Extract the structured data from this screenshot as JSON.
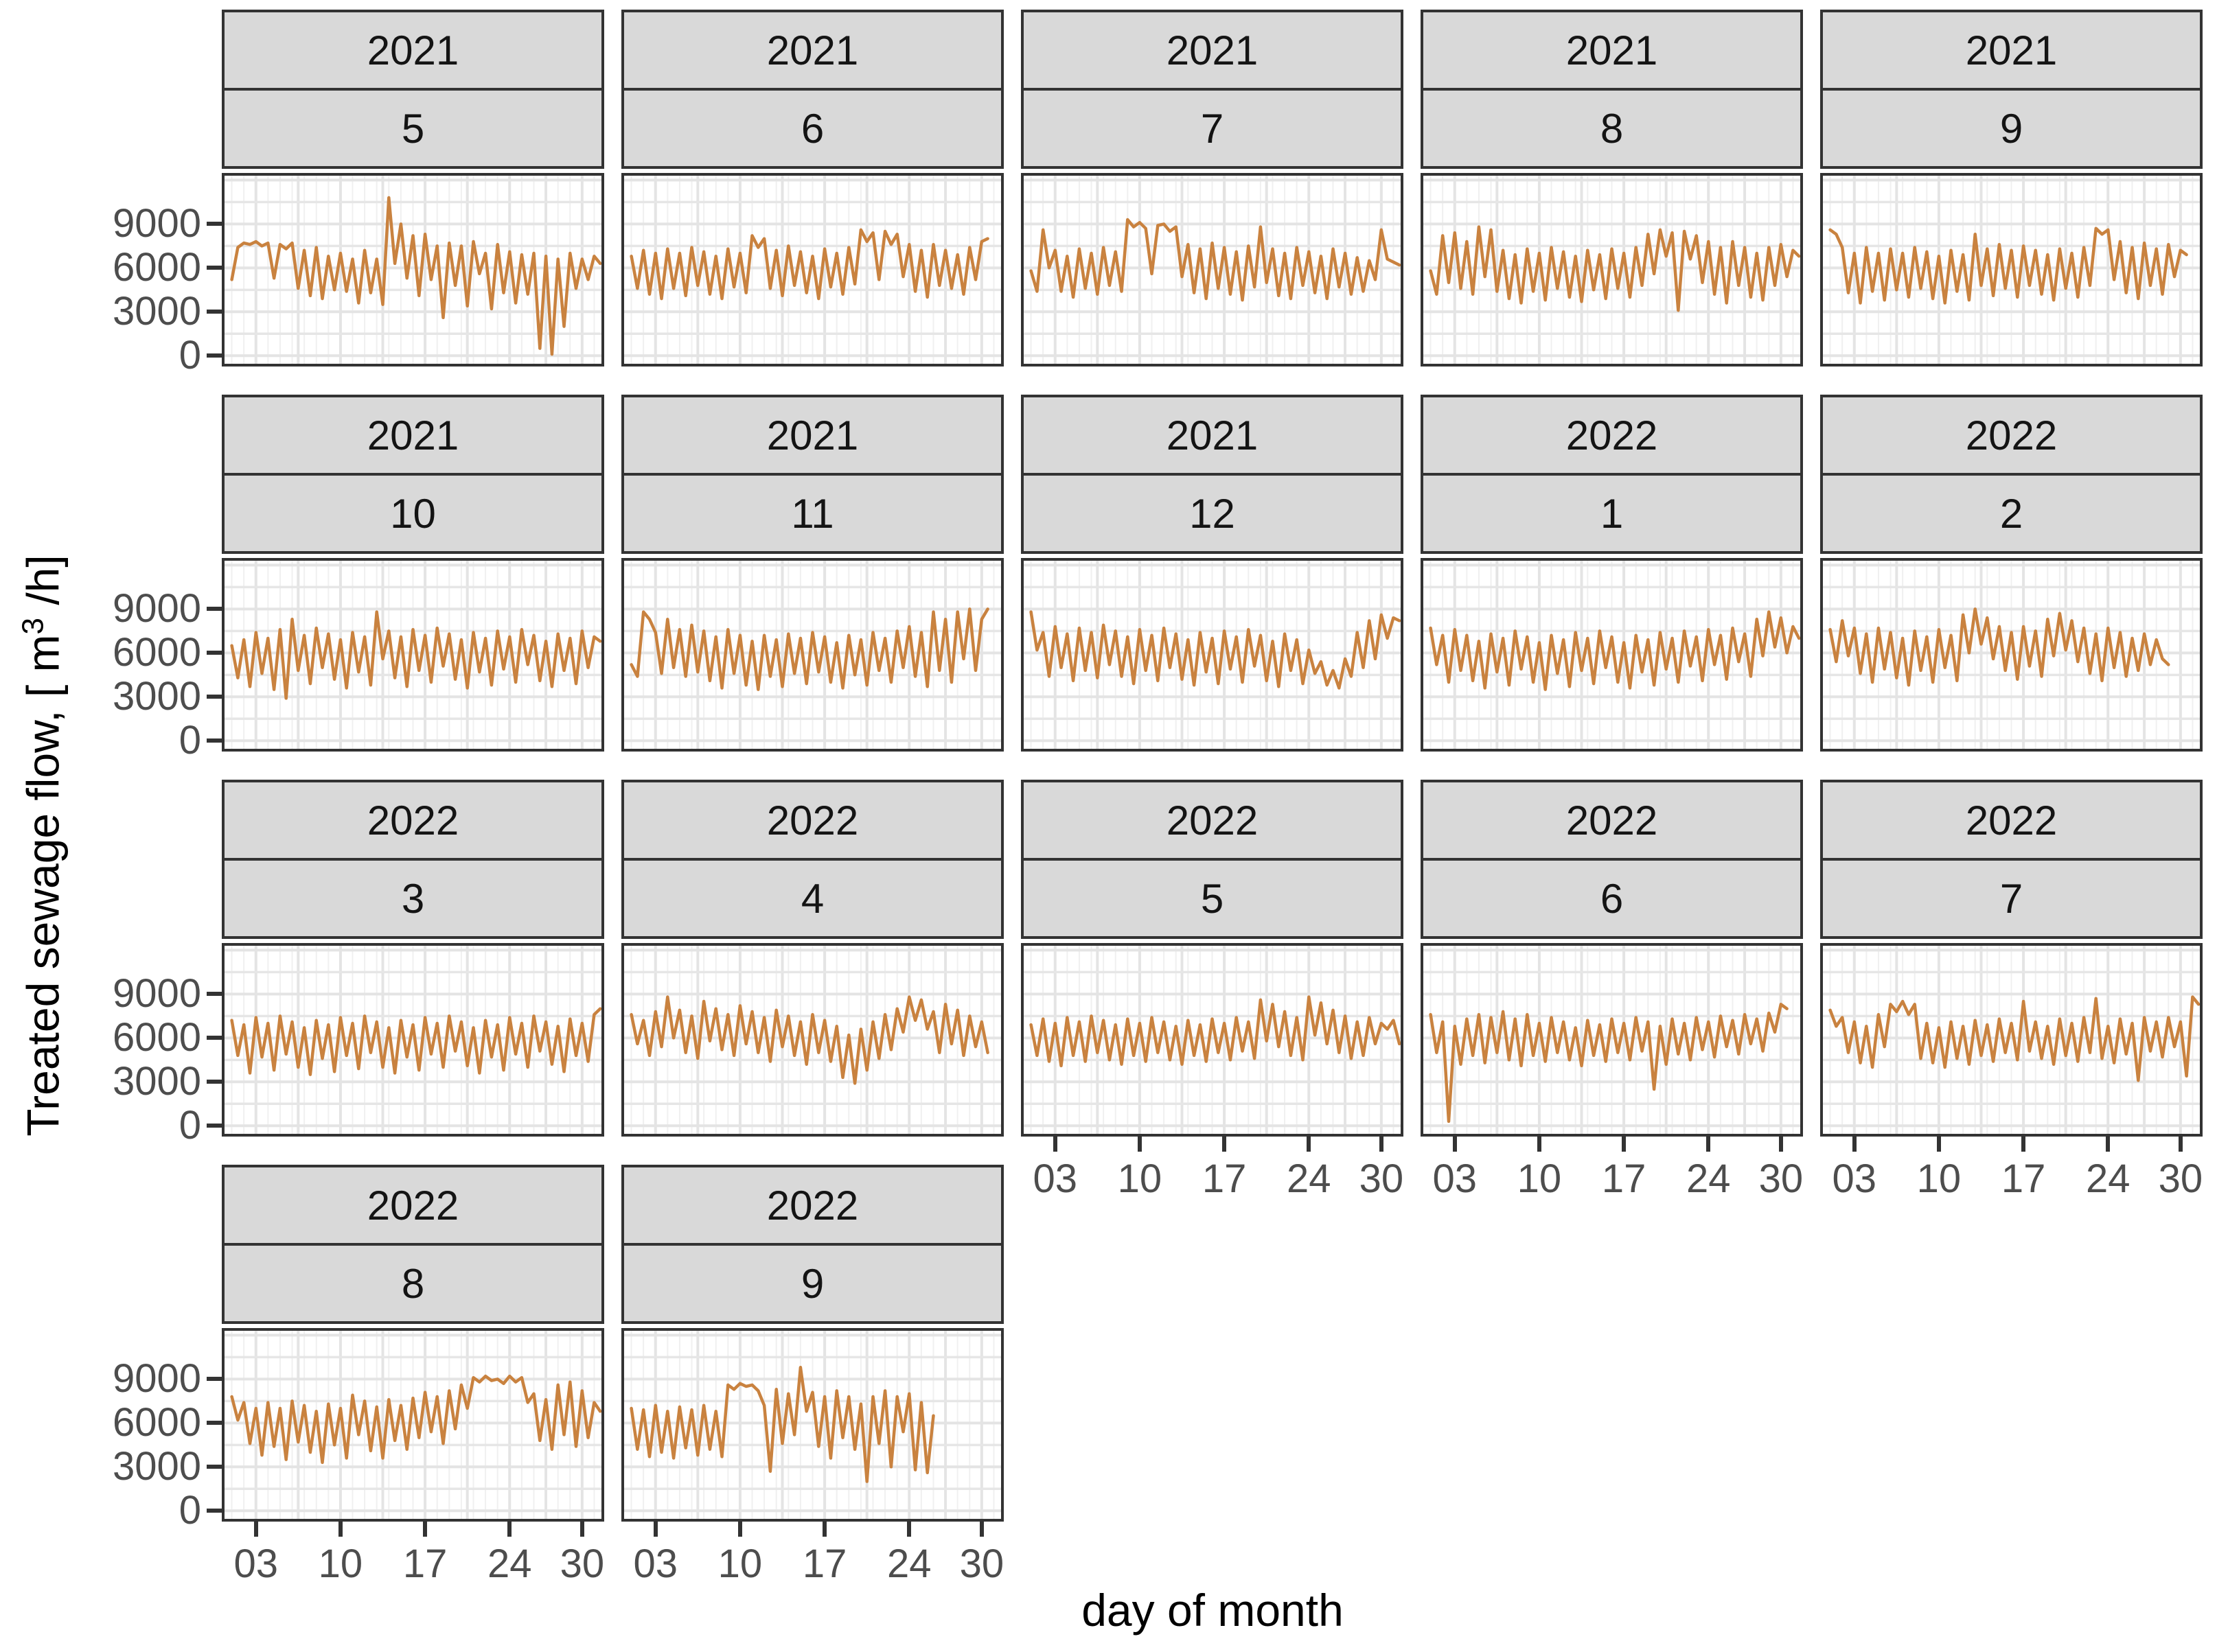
{
  "figure": {
    "x_axis_title": "day of month",
    "y_axis_title": {
      "prefix": "Treated sewage flow, [ m",
      "sup": "3",
      "suffix": " /h]"
    }
  },
  "chart_data": {
    "type": "line",
    "title": "",
    "xlabel": "day of month",
    "ylabel": "Treated sewage flow, [ m^3 /h]",
    "legend": "none",
    "grid": "on",
    "line_color": "#C9823F",
    "strip_bg": "#D9D9D9",
    "border_color": "#333333",
    "grid_major_color": "#E4E4E4",
    "grid_minor_color": "#F0F0F0",
    "grid_h_color": "#E6E6E6",
    "tick_label_color": "#4D4D4D",
    "x_domain": [
      0.4,
      31.6
    ],
    "y_domain": [
      -550,
      12300
    ],
    "x_ticks": {
      "values": [
        3,
        10,
        17,
        24,
        30
      ],
      "labels": [
        "03",
        "10",
        "17",
        "24",
        "30"
      ]
    },
    "y_ticks": {
      "values": [
        0,
        3000,
        6000,
        9000
      ],
      "labels": [
        "0",
        "3000",
        "6000",
        "9000"
      ]
    },
    "x_grid_major_days": [
      3,
      6.5,
      10,
      13.5,
      17,
      20.5,
      24,
      27,
      30
    ],
    "y_grid_step": 1500,
    "x_start_day": 1,
    "sample_step_days": 0.5,
    "facets": [
      {
        "year": "2021",
        "month": "5",
        "values": [
          5200,
          7400,
          7700,
          7600,
          7800,
          7500,
          7700,
          5300,
          7600,
          7300,
          7700,
          4600,
          7200,
          4100,
          7400,
          3900,
          6800,
          4500,
          7000,
          4400,
          6600,
          3600,
          7200,
          4300,
          6600,
          3500,
          10800,
          6300,
          9000,
          5300,
          8200,
          4100,
          8300,
          5200,
          7500,
          2600,
          7700,
          4800,
          7500,
          3400,
          7800,
          5600,
          7000,
          3200,
          7600,
          4300,
          7100,
          3600,
          6900,
          4200,
          7000,
          500,
          6800,
          100,
          6600,
          2000,
          7000,
          4600,
          6600,
          5200,
          6800,
          6300
        ]
      },
      {
        "year": "2021",
        "month": "6",
        "values": [
          6800,
          4600,
          7200,
          4200,
          7000,
          3900,
          7300,
          4600,
          7000,
          4100,
          7400,
          4800,
          7100,
          4200,
          6800,
          3900,
          7300,
          4700,
          7000,
          4300,
          8200,
          7400,
          8000,
          4600,
          7200,
          4100,
          7500,
          4800,
          7100,
          4300,
          6800,
          3900,
          7300,
          4700,
          7000,
          4200,
          7400,
          4900,
          8600,
          7800,
          8400,
          5200,
          8500,
          7600,
          8300,
          5400,
          7600,
          4400,
          7200,
          4000,
          7600,
          4800,
          7200,
          4600,
          6900,
          4200,
          7400,
          5200,
          7800,
          8000
        ]
      },
      {
        "year": "2021",
        "month": "7",
        "values": [
          5800,
          4400,
          8600,
          6000,
          7200,
          4400,
          6800,
          4000,
          7300,
          4600,
          7000,
          4200,
          7400,
          4800,
          7100,
          4400,
          9300,
          8800,
          9100,
          8700,
          5600,
          8900,
          9000,
          8500,
          8800,
          5400,
          7600,
          4300,
          7300,
          3900,
          7700,
          4600,
          7400,
          4200,
          7100,
          3800,
          7500,
          4700,
          8800,
          5000,
          7300,
          4100,
          7000,
          3900,
          7400,
          4800,
          7100,
          4300,
          6800,
          3900,
          7300,
          4700,
          7000,
          4200,
          6700,
          4400,
          6500,
          5200,
          8600,
          6600,
          6400,
          6200
        ]
      },
      {
        "year": "2021",
        "month": "8",
        "values": [
          5800,
          4200,
          8200,
          5000,
          8400,
          4600,
          7800,
          4200,
          8800,
          5400,
          8600,
          4400,
          7200,
          3900,
          6900,
          3600,
          7300,
          4400,
          7000,
          3800,
          7400,
          4600,
          7100,
          4000,
          6800,
          3700,
          7200,
          4500,
          6900,
          3900,
          7300,
          4600,
          7000,
          4000,
          7400,
          4800,
          8300,
          5600,
          8600,
          6800,
          8400,
          3100,
          8500,
          6600,
          8200,
          5000,
          7800,
          4200,
          7400,
          3600,
          7800,
          4800,
          7400,
          4000,
          7000,
          3800,
          7400,
          4800,
          7600,
          5400,
          7200,
          6800
        ]
      },
      {
        "year": "2021",
        "month": "9",
        "values": [
          8600,
          8300,
          7400,
          4300,
          7000,
          3600,
          7400,
          4400,
          7000,
          3800,
          7300,
          4500,
          7000,
          4000,
          7400,
          4600,
          7100,
          3900,
          6800,
          3600,
          7200,
          4400,
          6900,
          3800,
          8300,
          4800,
          7300,
          4100,
          7600,
          4600,
          7200,
          4000,
          7500,
          4800,
          7200,
          4200,
          6900,
          3800,
          7300,
          4600,
          7000,
          4000,
          7400,
          4800,
          8700,
          8300,
          8600,
          5200,
          7800,
          4300,
          7400,
          3900,
          7700,
          4800,
          7300,
          4200,
          7600,
          5400,
          7200,
          6900
        ]
      },
      {
        "year": "2021",
        "month": "10",
        "values": [
          6500,
          4300,
          6900,
          3700,
          7400,
          4600,
          7000,
          3500,
          7600,
          2900,
          8300,
          4800,
          7200,
          3900,
          7700,
          5000,
          7300,
          4200,
          6900,
          3600,
          7400,
          4700,
          7100,
          3800,
          8800,
          5600,
          7500,
          4300,
          7100,
          3700,
          7600,
          4800,
          7200,
          4000,
          7700,
          5100,
          7300,
          4200,
          6900,
          3600,
          7400,
          4700,
          7000,
          3800,
          7500,
          4900,
          7100,
          4000,
          7600,
          5200,
          7200,
          4100,
          6800,
          3700,
          7300,
          4800,
          7000,
          3900,
          7500,
          5000,
          7100,
          6800
        ]
      },
      {
        "year": "2021",
        "month": "11",
        "values": [
          5200,
          4400,
          8800,
          8300,
          7400,
          4600,
          8300,
          5000,
          7600,
          4400,
          7900,
          4700,
          7500,
          4100,
          7100,
          3600,
          7600,
          4600,
          7200,
          3800,
          6800,
          3500,
          7200,
          4400,
          6900,
          3700,
          7300,
          4600,
          7000,
          3900,
          7400,
          4700,
          7100,
          4000,
          6700,
          3600,
          7200,
          4500,
          6900,
          3800,
          7400,
          4800,
          7000,
          4000,
          7500,
          5000,
          7800,
          4400,
          7400,
          3700,
          8800,
          4800,
          8300,
          4000,
          8800,
          5600,
          9000,
          4800,
          8300,
          9000
        ]
      },
      {
        "year": "2021",
        "month": "12",
        "values": [
          8800,
          6200,
          7400,
          4400,
          7800,
          5000,
          7300,
          4100,
          7700,
          4800,
          7400,
          4300,
          7900,
          5200,
          7500,
          4400,
          7100,
          3900,
          7600,
          4800,
          7200,
          4100,
          7700,
          5000,
          7300,
          4200,
          6900,
          3800,
          7400,
          4700,
          7000,
          3900,
          7500,
          4900,
          7100,
          4000,
          7600,
          5100,
          7200,
          4100,
          6800,
          3700,
          7300,
          4800,
          6900,
          3900,
          6200,
          4600,
          5400,
          3800,
          4800,
          3600,
          5600,
          4400,
          7400,
          5000,
          8200,
          5600,
          8600,
          7000,
          8400,
          8200
        ]
      },
      {
        "year": "2022",
        "month": "1",
        "values": [
          7700,
          5200,
          7200,
          4000,
          7600,
          4800,
          7200,
          4100,
          6800,
          3600,
          7300,
          4700,
          7000,
          3800,
          7500,
          4900,
          7100,
          4000,
          6700,
          3500,
          7200,
          4600,
          6900,
          3700,
          7400,
          4800,
          7000,
          3900,
          7500,
          5000,
          7100,
          4000,
          6700,
          3600,
          7200,
          4700,
          6900,
          3800,
          7400,
          4900,
          7000,
          4000,
          7500,
          5100,
          7100,
          4100,
          7600,
          5200,
          7200,
          4200,
          7700,
          5400,
          7300,
          4400,
          8300,
          5800,
          8800,
          6400,
          8400,
          6000,
          7800,
          7000
        ]
      },
      {
        "year": "2022",
        "month": "2",
        "values": [
          7600,
          5400,
          8200,
          5800,
          7700,
          4600,
          7300,
          4000,
          7700,
          4900,
          7400,
          4300,
          7000,
          3800,
          7500,
          4800,
          7100,
          4000,
          7600,
          5000,
          7200,
          4100,
          8600,
          6000,
          9000,
          6600,
          8400,
          5600,
          7800,
          4800,
          7400,
          4200,
          7800,
          5100,
          7500,
          4400,
          8300,
          5800,
          8700,
          6200,
          8200,
          5400,
          7700,
          4600,
          7300,
          4100,
          7700,
          5000,
          7400,
          4400,
          7000,
          4800,
          7300,
          5200,
          6900,
          5600,
          5200
        ]
      },
      {
        "year": "2022",
        "month": "3",
        "values": [
          7200,
          4800,
          6900,
          3600,
          7400,
          4700,
          7000,
          3800,
          7500,
          4900,
          7100,
          4000,
          6700,
          3500,
          7200,
          4600,
          6900,
          3700,
          7400,
          4800,
          7000,
          3900,
          7500,
          5000,
          7100,
          4000,
          6700,
          3600,
          7200,
          4700,
          6900,
          3800,
          7400,
          4900,
          7000,
          4000,
          7500,
          5100,
          7100,
          4100,
          6700,
          3600,
          7200,
          4700,
          6900,
          3800,
          7400,
          4900,
          7000,
          4000,
          7500,
          5100,
          7100,
          4200,
          6800,
          3700,
          7300,
          4800,
          7000,
          4400,
          7600,
          8000
        ]
      },
      {
        "year": "2022",
        "month": "4",
        "values": [
          7600,
          5600,
          7200,
          4800,
          7800,
          5400,
          8800,
          6000,
          7900,
          5000,
          7500,
          4600,
          8500,
          5800,
          8000,
          5200,
          7600,
          4800,
          8200,
          5600,
          7800,
          5000,
          7400,
          4400,
          7900,
          5400,
          7500,
          4800,
          7100,
          4200,
          7600,
          5000,
          7200,
          4400,
          6800,
          3300,
          6200,
          2900,
          6600,
          3800,
          7100,
          4600,
          7600,
          5200,
          8000,
          6400,
          8800,
          7200,
          8600,
          6600,
          7800,
          5000,
          8300,
          5600,
          7900,
          4800,
          7500,
          5400,
          7100,
          5000
        ]
      },
      {
        "year": "2022",
        "month": "5",
        "values": [
          6900,
          4800,
          7300,
          4400,
          7000,
          4100,
          7400,
          4800,
          7100,
          4400,
          7500,
          5000,
          7200,
          4500,
          6900,
          4200,
          7300,
          4800,
          7000,
          4400,
          7400,
          5000,
          7100,
          4500,
          6800,
          4200,
          7200,
          4800,
          6900,
          4400,
          7300,
          5000,
          7000,
          4500,
          7400,
          5100,
          7100,
          4600,
          8600,
          5800,
          8300,
          5400,
          7800,
          4800,
          7400,
          4500,
          8800,
          6200,
          8400,
          5600,
          7900,
          5000,
          7500,
          4600,
          7100,
          4800,
          7400,
          5600,
          7000,
          6600,
          7200,
          5600
        ]
      },
      {
        "year": "2022",
        "month": "6",
        "values": [
          7600,
          5000,
          7100,
          300,
          6800,
          4200,
          7300,
          4800,
          7600,
          4300,
          7400,
          5000,
          7800,
          4500,
          7300,
          4100,
          7600,
          4800,
          7000,
          4400,
          7400,
          5000,
          7100,
          4500,
          6700,
          4100,
          7200,
          4800,
          6900,
          4400,
          7300,
          5000,
          7000,
          4500,
          7400,
          5100,
          7100,
          2500,
          6800,
          4200,
          7300,
          4900,
          7000,
          4500,
          7400,
          5200,
          7100,
          4700,
          7500,
          5400,
          7200,
          4900,
          7600,
          5600,
          7300,
          5100,
          7700,
          6400,
          8300,
          8000
        ]
      },
      {
        "year": "2022",
        "month": "7",
        "values": [
          7900,
          6800,
          7400,
          5000,
          7100,
          4300,
          6800,
          4000,
          7600,
          5400,
          8300,
          7800,
          8500,
          7600,
          8300,
          4600,
          7000,
          4300,
          6700,
          4000,
          7100,
          4600,
          6800,
          4200,
          7200,
          4800,
          6900,
          4400,
          7300,
          5000,
          7000,
          4500,
          8500,
          5100,
          7100,
          4600,
          6800,
          4200,
          7300,
          4800,
          7000,
          4400,
          7400,
          5000,
          8700,
          4600,
          6800,
          4300,
          7300,
          4900,
          7000,
          3100,
          7400,
          5100,
          7100,
          4700,
          7400,
          5400,
          7100,
          3400,
          8800,
          8300
        ]
      },
      {
        "year": "2022",
        "month": "8",
        "values": [
          7800,
          6200,
          7400,
          4600,
          7000,
          3800,
          7400,
          4400,
          7000,
          3500,
          7500,
          4700,
          7200,
          4000,
          6800,
          3300,
          7300,
          4500,
          7000,
          3600,
          7900,
          5200,
          7500,
          4100,
          7100,
          3600,
          7600,
          4800,
          7200,
          4200,
          7700,
          5000,
          8100,
          5400,
          7800,
          4600,
          8200,
          5600,
          8600,
          7000,
          9100,
          8800,
          9200,
          8900,
          9000,
          8700,
          9200,
          8800,
          9100,
          7400,
          8000,
          4800,
          7600,
          4200,
          8600,
          5200,
          8800,
          4400,
          8200,
          5000,
          7400,
          6800
        ]
      },
      {
        "year": "2022",
        "month": "9",
        "values": [
          7000,
          4200,
          6900,
          3700,
          7200,
          4000,
          6800,
          3600,
          7100,
          4300,
          6900,
          3800,
          7200,
          4200,
          6800,
          3700,
          8600,
          8300,
          8700,
          8500,
          8600,
          8200,
          7200,
          2700,
          8300,
          4600,
          8000,
          5200,
          9800,
          6800,
          8100,
          4400,
          7800,
          3600,
          8200,
          5000,
          7800,
          4200,
          7300,
          2000,
          7800,
          4600,
          8200,
          3000,
          7800,
          5400,
          8000,
          2800,
          7400,
          2600,
          6500
        ]
      }
    ]
  }
}
